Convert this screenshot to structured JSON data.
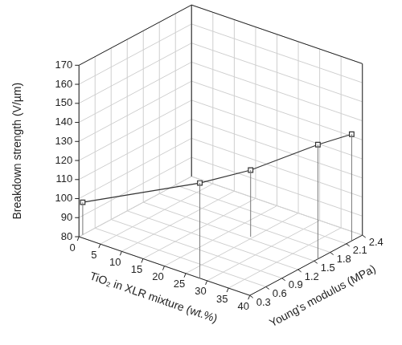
{
  "chart_data": {
    "type": "line",
    "x_label": "TiO₂ in XLR mixture (wt.%)",
    "y_label": "Young's modulus (MPa)",
    "z_label": "Breakdown strength (V/µm)",
    "x": [
      0,
      28.3,
      24.5,
      40,
      40
    ],
    "y": [
      0.37,
      0.3,
      1.55,
      1.57,
      2.2
    ],
    "z": [
      97,
      130,
      115,
      140,
      136
    ],
    "xlim": [
      0,
      40
    ],
    "xticks": [
      0,
      5,
      10,
      15,
      20,
      25,
      30,
      35,
      40
    ],
    "ylim": [
      0.3,
      2.4
    ],
    "yticks": [
      0.3,
      0.6,
      0.9,
      1.2,
      1.5,
      1.8,
      2.1,
      2.4
    ],
    "zlim": [
      80,
      170
    ],
    "zticks": [
      80,
      90,
      100,
      110,
      120,
      130,
      140,
      150,
      160,
      170
    ],
    "grid": true,
    "marker": "square",
    "color": "#333333"
  }
}
